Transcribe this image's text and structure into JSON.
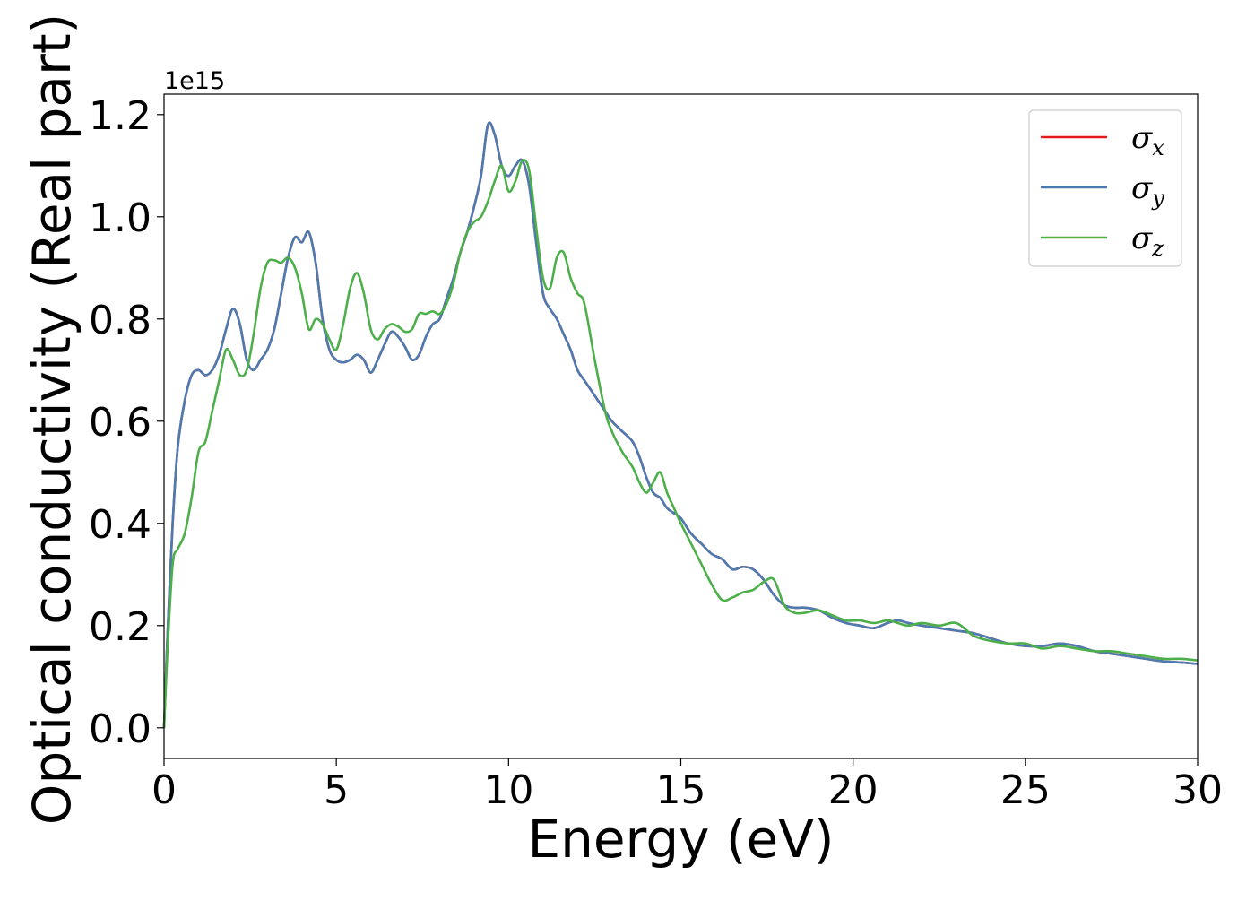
{
  "chart_data": {
    "type": "line",
    "xlabel": "Energy (eV)",
    "ylabel": "Optical conductivity (Real part)",
    "y_offset_text": "1e15",
    "xlim": [
      0,
      30
    ],
    "ylim": [
      -0.06,
      1.24
    ],
    "x_ticks": [
      0,
      5,
      10,
      15,
      20,
      25,
      30
    ],
    "x_tick_labels": [
      "0",
      "5",
      "10",
      "15",
      "20",
      "25",
      "30"
    ],
    "y_ticks": [
      0.0,
      0.2,
      0.4,
      0.6,
      0.8,
      1.0,
      1.2
    ],
    "y_tick_labels": [
      "0.0",
      "0.2",
      "0.4",
      "0.6",
      "0.8",
      "1.0",
      "1.2"
    ],
    "grid": false,
    "legend_position": "top-right",
    "series": [
      {
        "name": "σx",
        "symbol": "σ",
        "subscript": "x",
        "color": "#e41a1c",
        "x": [
          0,
          0.1,
          0.25,
          0.4,
          0.6,
          0.8,
          1.0,
          1.2,
          1.4,
          1.6,
          1.8,
          2.0,
          2.2,
          2.4,
          2.6,
          2.8,
          3.0,
          3.2,
          3.4,
          3.6,
          3.8,
          4.0,
          4.2,
          4.4,
          4.6,
          4.8,
          5.0,
          5.2,
          5.4,
          5.6,
          5.8,
          6.0,
          6.2,
          6.4,
          6.6,
          6.8,
          7.0,
          7.2,
          7.4,
          7.6,
          7.8,
          8.0,
          8.2,
          8.4,
          8.6,
          8.8,
          9.0,
          9.2,
          9.4,
          9.6,
          9.8,
          10.0,
          10.2,
          10.4,
          10.6,
          10.8,
          11.0,
          11.2,
          11.4,
          11.6,
          11.8,
          12.0,
          12.2,
          12.5,
          12.8,
          13.0,
          13.3,
          13.6,
          13.8,
          14.0,
          14.2,
          14.4,
          14.6,
          14.8,
          15.0,
          15.3,
          15.6,
          15.9,
          16.2,
          16.5,
          16.8,
          17.1,
          17.4,
          17.7,
          18.0,
          18.3,
          18.6,
          19.0,
          19.4,
          19.8,
          20.2,
          20.6,
          21.0,
          21.3,
          21.6,
          22.0,
          22.5,
          23.0,
          23.5,
          24.0,
          24.5,
          25.0,
          25.5,
          26.0,
          26.5,
          27.0,
          27.5,
          28.0,
          28.5,
          29.0,
          29.5,
          30.0
        ],
        "y": [
          0.0,
          0.18,
          0.4,
          0.55,
          0.64,
          0.69,
          0.7,
          0.69,
          0.7,
          0.73,
          0.78,
          0.82,
          0.79,
          0.72,
          0.7,
          0.72,
          0.74,
          0.78,
          0.85,
          0.92,
          0.96,
          0.95,
          0.97,
          0.91,
          0.8,
          0.74,
          0.72,
          0.715,
          0.72,
          0.73,
          0.72,
          0.695,
          0.72,
          0.75,
          0.775,
          0.765,
          0.745,
          0.72,
          0.73,
          0.765,
          0.79,
          0.8,
          0.84,
          0.88,
          0.93,
          0.97,
          1.02,
          1.08,
          1.18,
          1.16,
          1.1,
          1.08,
          1.1,
          1.11,
          1.06,
          0.95,
          0.85,
          0.82,
          0.8,
          0.77,
          0.74,
          0.7,
          0.68,
          0.65,
          0.62,
          0.6,
          0.58,
          0.56,
          0.53,
          0.49,
          0.46,
          0.45,
          0.43,
          0.42,
          0.41,
          0.38,
          0.36,
          0.34,
          0.33,
          0.31,
          0.315,
          0.31,
          0.29,
          0.26,
          0.24,
          0.235,
          0.235,
          0.23,
          0.215,
          0.205,
          0.2,
          0.195,
          0.205,
          0.21,
          0.205,
          0.2,
          0.195,
          0.19,
          0.185,
          0.175,
          0.165,
          0.16,
          0.16,
          0.165,
          0.16,
          0.15,
          0.145,
          0.14,
          0.135,
          0.13,
          0.128,
          0.125
        ]
      },
      {
        "name": "σy",
        "symbol": "σ",
        "subscript": "y",
        "color": "#4b7bb1",
        "x": [
          0,
          0.1,
          0.25,
          0.4,
          0.6,
          0.8,
          1.0,
          1.2,
          1.4,
          1.6,
          1.8,
          2.0,
          2.2,
          2.4,
          2.6,
          2.8,
          3.0,
          3.2,
          3.4,
          3.6,
          3.8,
          4.0,
          4.2,
          4.4,
          4.6,
          4.8,
          5.0,
          5.2,
          5.4,
          5.6,
          5.8,
          6.0,
          6.2,
          6.4,
          6.6,
          6.8,
          7.0,
          7.2,
          7.4,
          7.6,
          7.8,
          8.0,
          8.2,
          8.4,
          8.6,
          8.8,
          9.0,
          9.2,
          9.4,
          9.6,
          9.8,
          10.0,
          10.2,
          10.4,
          10.6,
          10.8,
          11.0,
          11.2,
          11.4,
          11.6,
          11.8,
          12.0,
          12.2,
          12.5,
          12.8,
          13.0,
          13.3,
          13.6,
          13.8,
          14.0,
          14.2,
          14.4,
          14.6,
          14.8,
          15.0,
          15.3,
          15.6,
          15.9,
          16.2,
          16.5,
          16.8,
          17.1,
          17.4,
          17.7,
          18.0,
          18.3,
          18.6,
          19.0,
          19.4,
          19.8,
          20.2,
          20.6,
          21.0,
          21.3,
          21.6,
          22.0,
          22.5,
          23.0,
          23.5,
          24.0,
          24.5,
          25.0,
          25.5,
          26.0,
          26.5,
          27.0,
          27.5,
          28.0,
          28.5,
          29.0,
          29.5,
          30.0
        ],
        "y": [
          0.0,
          0.18,
          0.4,
          0.55,
          0.64,
          0.69,
          0.7,
          0.69,
          0.7,
          0.73,
          0.78,
          0.82,
          0.79,
          0.72,
          0.7,
          0.72,
          0.74,
          0.78,
          0.85,
          0.92,
          0.96,
          0.95,
          0.97,
          0.91,
          0.8,
          0.74,
          0.72,
          0.715,
          0.72,
          0.73,
          0.72,
          0.695,
          0.72,
          0.75,
          0.775,
          0.765,
          0.745,
          0.72,
          0.73,
          0.765,
          0.79,
          0.8,
          0.84,
          0.88,
          0.93,
          0.97,
          1.02,
          1.08,
          1.18,
          1.16,
          1.1,
          1.08,
          1.1,
          1.11,
          1.06,
          0.95,
          0.85,
          0.82,
          0.8,
          0.77,
          0.74,
          0.7,
          0.68,
          0.65,
          0.62,
          0.6,
          0.58,
          0.56,
          0.53,
          0.49,
          0.46,
          0.45,
          0.43,
          0.42,
          0.41,
          0.38,
          0.36,
          0.34,
          0.33,
          0.31,
          0.315,
          0.31,
          0.29,
          0.26,
          0.24,
          0.235,
          0.235,
          0.23,
          0.215,
          0.205,
          0.2,
          0.195,
          0.205,
          0.21,
          0.205,
          0.2,
          0.195,
          0.19,
          0.185,
          0.175,
          0.165,
          0.16,
          0.16,
          0.165,
          0.16,
          0.15,
          0.145,
          0.14,
          0.135,
          0.13,
          0.128,
          0.125
        ]
      },
      {
        "name": "σz",
        "symbol": "σ",
        "subscript": "z",
        "color": "#4daf4a",
        "x": [
          0,
          0.1,
          0.25,
          0.4,
          0.6,
          0.8,
          1.0,
          1.2,
          1.4,
          1.6,
          1.8,
          2.0,
          2.2,
          2.4,
          2.6,
          2.8,
          3.0,
          3.2,
          3.4,
          3.6,
          3.8,
          4.0,
          4.2,
          4.4,
          4.6,
          4.8,
          5.0,
          5.2,
          5.4,
          5.6,
          5.8,
          6.0,
          6.2,
          6.4,
          6.6,
          6.8,
          7.0,
          7.2,
          7.4,
          7.6,
          7.8,
          8.0,
          8.2,
          8.4,
          8.6,
          8.8,
          9.0,
          9.2,
          9.4,
          9.6,
          9.8,
          10.0,
          10.2,
          10.4,
          10.6,
          10.8,
          11.0,
          11.2,
          11.4,
          11.6,
          11.8,
          12.0,
          12.2,
          12.5,
          12.8,
          13.0,
          13.3,
          13.6,
          13.8,
          14.0,
          14.2,
          14.4,
          14.6,
          14.8,
          15.0,
          15.3,
          15.6,
          15.9,
          16.2,
          16.5,
          16.8,
          17.1,
          17.4,
          17.7,
          18.0,
          18.3,
          18.6,
          19.0,
          19.4,
          19.8,
          20.2,
          20.6,
          21.0,
          21.3,
          21.6,
          22.0,
          22.5,
          23.0,
          23.5,
          24.0,
          24.5,
          25.0,
          25.5,
          26.0,
          26.5,
          27.0,
          27.5,
          28.0,
          28.5,
          29.0,
          29.5,
          30.0
        ],
        "y": [
          0.0,
          0.15,
          0.32,
          0.35,
          0.38,
          0.45,
          0.54,
          0.56,
          0.62,
          0.68,
          0.74,
          0.72,
          0.69,
          0.7,
          0.77,
          0.86,
          0.91,
          0.915,
          0.91,
          0.92,
          0.9,
          0.85,
          0.78,
          0.8,
          0.79,
          0.76,
          0.74,
          0.79,
          0.86,
          0.89,
          0.85,
          0.78,
          0.76,
          0.78,
          0.79,
          0.785,
          0.775,
          0.78,
          0.81,
          0.81,
          0.815,
          0.81,
          0.83,
          0.87,
          0.93,
          0.97,
          0.99,
          1.0,
          1.03,
          1.07,
          1.1,
          1.05,
          1.07,
          1.11,
          1.09,
          0.98,
          0.88,
          0.86,
          0.92,
          0.93,
          0.88,
          0.85,
          0.83,
          0.72,
          0.62,
          0.58,
          0.54,
          0.51,
          0.48,
          0.46,
          0.48,
          0.5,
          0.46,
          0.43,
          0.4,
          0.36,
          0.32,
          0.28,
          0.25,
          0.255,
          0.265,
          0.27,
          0.285,
          0.29,
          0.24,
          0.225,
          0.225,
          0.23,
          0.22,
          0.21,
          0.21,
          0.205,
          0.21,
          0.205,
          0.2,
          0.205,
          0.2,
          0.205,
          0.18,
          0.17,
          0.165,
          0.165,
          0.155,
          0.16,
          0.155,
          0.15,
          0.15,
          0.145,
          0.14,
          0.135,
          0.135,
          0.132
        ]
      }
    ]
  }
}
